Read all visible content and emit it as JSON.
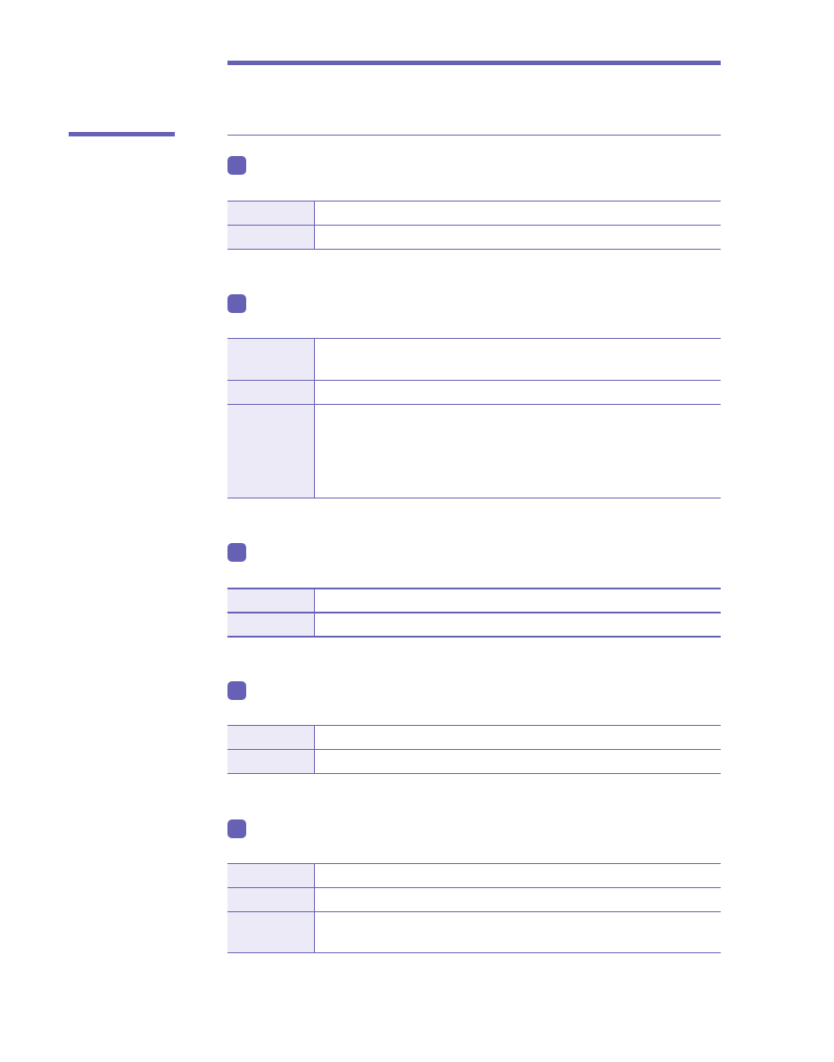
{
  "colors": {
    "accent": "#6661b5",
    "label_fill": "#eceaf6"
  },
  "sections": [
    {
      "rows": [
        {
          "label": "",
          "value": ""
        },
        {
          "label": "",
          "value": ""
        }
      ]
    },
    {
      "rows": [
        {
          "label": "",
          "value": ""
        },
        {
          "label": "",
          "value": ""
        },
        {
          "label": "",
          "value": ""
        }
      ]
    },
    {
      "rows": [
        {
          "label": "",
          "value": ""
        },
        {
          "label": "",
          "value": ""
        }
      ]
    },
    {
      "rows": [
        {
          "label": "",
          "value": ""
        },
        {
          "label": "",
          "value": ""
        }
      ]
    },
    {
      "rows": [
        {
          "label": "",
          "value": ""
        },
        {
          "label": "",
          "value": ""
        },
        {
          "label": "",
          "value": ""
        }
      ]
    }
  ]
}
